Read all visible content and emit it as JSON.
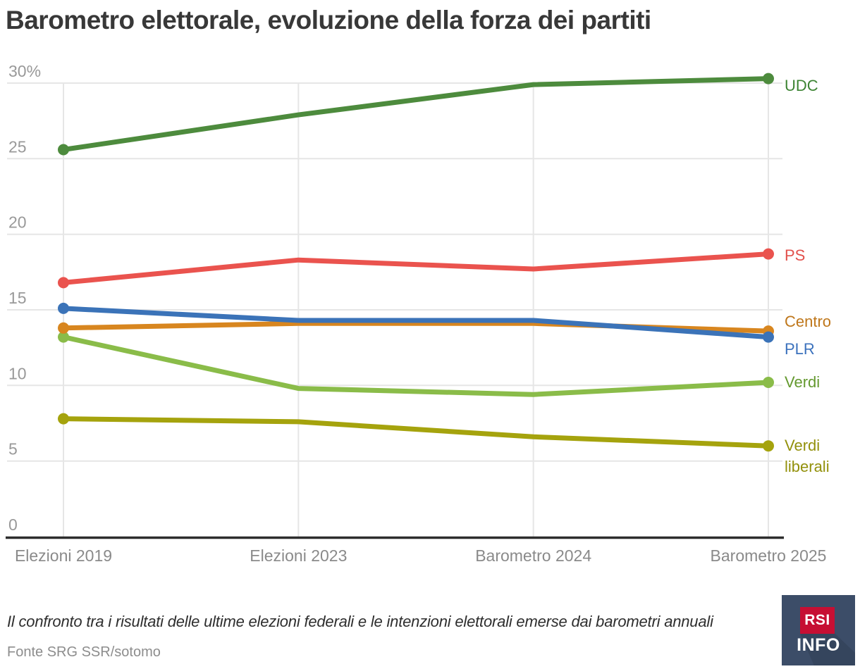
{
  "title": "Barometro elettorale, evoluzione della forza dei partiti",
  "chart_data": {
    "type": "line",
    "title": "Barometro elettorale, evoluzione della forza dei partiti",
    "categories": [
      "Elezioni 2019",
      "Elezioni 2023",
      "Barometro 2024",
      "Barometro 2025"
    ],
    "unit": "%",
    "ylim": [
      0,
      30
    ],
    "yticks": [
      30,
      25,
      20,
      15,
      10,
      5,
      0
    ],
    "ytick_labels": [
      "30%",
      "25",
      "20",
      "15",
      "10",
      "5",
      "0"
    ],
    "grid": true,
    "legend_position": "right-of-line-ends",
    "series": [
      {
        "name": "UDC",
        "label_lines": [
          "UDC"
        ],
        "color": "#4d8b3d",
        "label_color": "#3d8433",
        "values": [
          25.6,
          27.9,
          29.9,
          30.3
        ]
      },
      {
        "name": "PS",
        "label_lines": [
          "PS"
        ],
        "color": "#ea534e",
        "label_color": "#e2514c",
        "values": [
          16.8,
          18.3,
          17.7,
          18.7
        ]
      },
      {
        "name": "Centro",
        "label_lines": [
          "Centro"
        ],
        "color": "#d8861f",
        "label_color": "#bf771b",
        "values": [
          13.8,
          14.1,
          14.1,
          13.6
        ]
      },
      {
        "name": "PLR",
        "label_lines": [
          "PLR"
        ],
        "color": "#3b73b8",
        "label_color": "#3c72bd",
        "values": [
          15.1,
          14.3,
          14.3,
          13.2
        ]
      },
      {
        "name": "Verdi",
        "label_lines": [
          "Verdi"
        ],
        "color": "#8abc49",
        "label_color": "#64992f",
        "values": [
          13.2,
          9.8,
          9.4,
          10.2
        ]
      },
      {
        "name": "Verdi liberali",
        "label_lines": [
          "Verdi",
          "liberali"
        ],
        "color": "#a5a30d",
        "label_color": "#93910c",
        "values": [
          7.8,
          7.6,
          6.6,
          6.0
        ]
      }
    ]
  },
  "footer": {
    "description": "Il confronto tra i risultati delle ultime elezioni federali e le intenzioni elettorali emerse dai barometri annuali",
    "source": "Fonte SRG SSR/sotomo"
  },
  "logo": {
    "top": "RSI",
    "bottom": "INFO"
  }
}
